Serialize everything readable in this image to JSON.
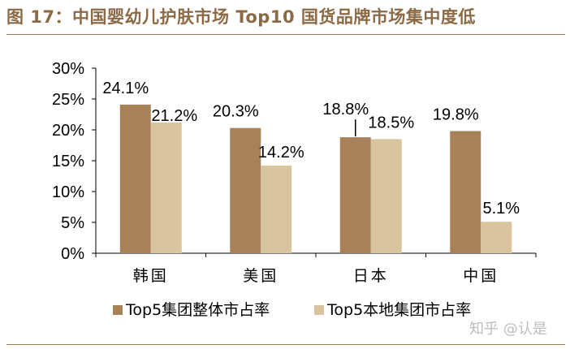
{
  "figure_title": "图 17：中国婴幼儿护肤市场 Top10 国货品牌市场集中度低",
  "watermark": "知乎 @认是",
  "colors": {
    "title": "#8c6a45",
    "rule": "#9a7b57",
    "series1": "#a98158",
    "series2": "#d9c59d",
    "text": "#000000"
  },
  "chart_data": {
    "type": "bar",
    "title": "",
    "xlabel": "",
    "ylabel": "",
    "categories": [
      "韩国",
      "美国",
      "日本",
      "中国"
    ],
    "series": [
      {
        "name": "Top5集团整体市占率",
        "values": [
          24.1,
          20.3,
          18.8,
          19.8
        ],
        "labels": [
          "24.1%",
          "20.3%",
          "18.8%",
          "19.8%"
        ]
      },
      {
        "name": "Top5本地集团市占率",
        "values": [
          21.2,
          14.2,
          18.5,
          5.1
        ],
        "labels": [
          "21.2%",
          "14.2%",
          "18.5%",
          "5.1%"
        ]
      }
    ],
    "ylim": [
      0,
      30
    ],
    "yticks": [
      0,
      5,
      10,
      15,
      20,
      25,
      30
    ],
    "ytick_labels": [
      "0%",
      "5%",
      "10%",
      "15%",
      "20%",
      "25%",
      "30%"
    ],
    "grid": false,
    "legend_position": "bottom"
  }
}
